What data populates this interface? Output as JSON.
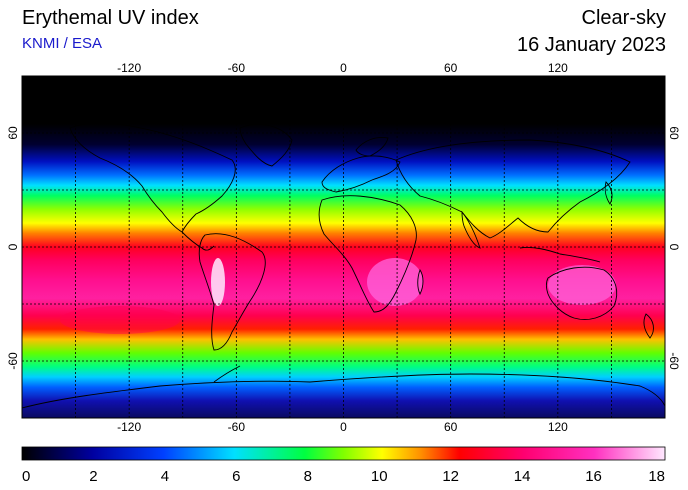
{
  "header": {
    "title": "Erythemal UV index",
    "subtitle": "KNMI / ESA",
    "type_label": "Clear-sky",
    "date_label": "16 January 2023"
  },
  "map": {
    "projection": "equirectangular",
    "lon_range": [
      -180,
      180
    ],
    "lat_range": [
      -90,
      90
    ],
    "lon_ticks": [
      "-120",
      "-60",
      "0",
      "60",
      "120"
    ],
    "lat_ticks": [
      "60",
      "0",
      "-60"
    ],
    "grid": "dashed, every 30 degrees",
    "colors": {
      "high_lat": "#000000",
      "equator": "#ff0040",
      "tropics_south": "#ff33aa",
      "andes_peak": "#ffeaff"
    }
  },
  "colorbar": {
    "min": 0,
    "max": 18,
    "labels": [
      "0",
      "2",
      "4",
      "6",
      "8",
      "10",
      "12",
      "14",
      "16",
      "18"
    ]
  }
}
